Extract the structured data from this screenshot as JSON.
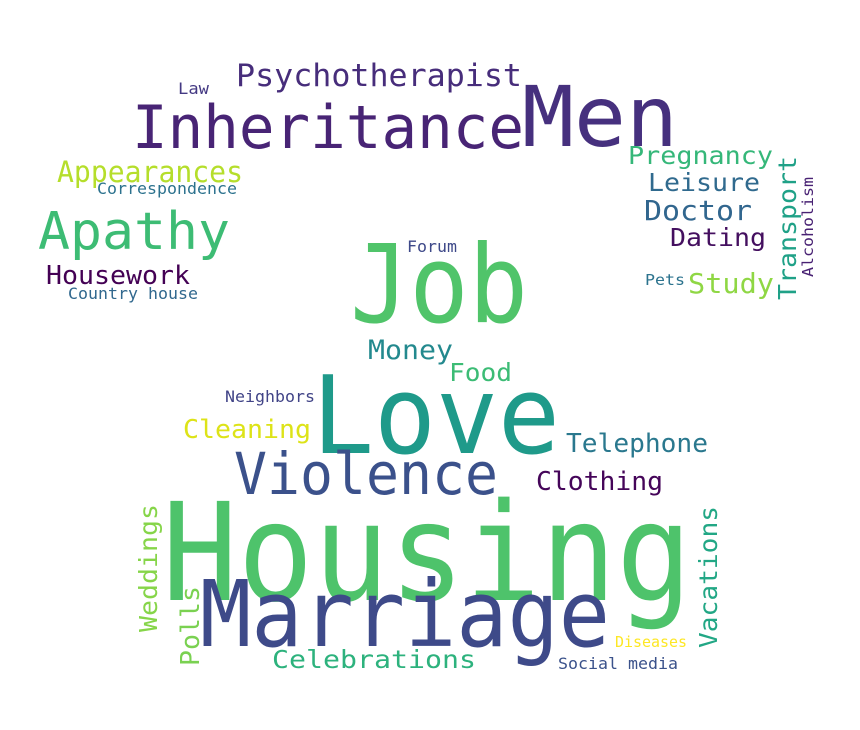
{
  "words": [
    {
      "text": "Housing",
      "color": "#4ec36b"
    },
    {
      "text": "Marriage",
      "color": "#3e4a89"
    },
    {
      "text": "Love",
      "color": "#1f9a8a"
    },
    {
      "text": "Job",
      "color": "#50c46a"
    },
    {
      "text": "Violence",
      "color": "#3b518b"
    },
    {
      "text": "Men",
      "color": "#46307e"
    },
    {
      "text": "Inheritance",
      "color": "#482475"
    },
    {
      "text": "Psychotherapist",
      "color": "#472d7b"
    },
    {
      "text": "Apathy",
      "color": "#3dbc74"
    },
    {
      "text": "Appearances",
      "color": "#b5de2b"
    },
    {
      "text": "Correspondence",
      "color": "#2c728e"
    },
    {
      "text": "Housework",
      "color": "#440154"
    },
    {
      "text": "Country house",
      "color": "#31688e"
    },
    {
      "text": "Law",
      "color": "#443983"
    },
    {
      "text": "Pregnancy",
      "color": "#35b779"
    },
    {
      "text": "Leisure",
      "color": "#306a8e"
    },
    {
      "text": "Doctor",
      "color": "#31668e"
    },
    {
      "text": "Dating",
      "color": "#440f5f"
    },
    {
      "text": "Transport",
      "color": "#1fa187"
    },
    {
      "text": "Alcoholism",
      "color": "#482173"
    },
    {
      "text": "Pets",
      "color": "#2c738e"
    },
    {
      "text": "Study",
      "color": "#8fd744"
    },
    {
      "text": "Forum",
      "color": "#3e4989"
    },
    {
      "text": "Money",
      "color": "#23898e"
    },
    {
      "text": "Food",
      "color": "#3cbc75"
    },
    {
      "text": "Neighbors",
      "color": "#414487"
    },
    {
      "text": "Cleaning",
      "color": "#dde318"
    },
    {
      "text": "Telephone",
      "color": "#2a788e"
    },
    {
      "text": "Clothing",
      "color": "#450559"
    },
    {
      "text": "Weddings",
      "color": "#86d549"
    },
    {
      "text": "Polls",
      "color": "#7ad151"
    },
    {
      "text": "Vacations",
      "color": "#22a785"
    },
    {
      "text": "Celebrations",
      "color": "#2db27d"
    },
    {
      "text": "Diseases",
      "color": "#fde725"
    },
    {
      "text": "Social media",
      "color": "#3b528b"
    }
  ]
}
